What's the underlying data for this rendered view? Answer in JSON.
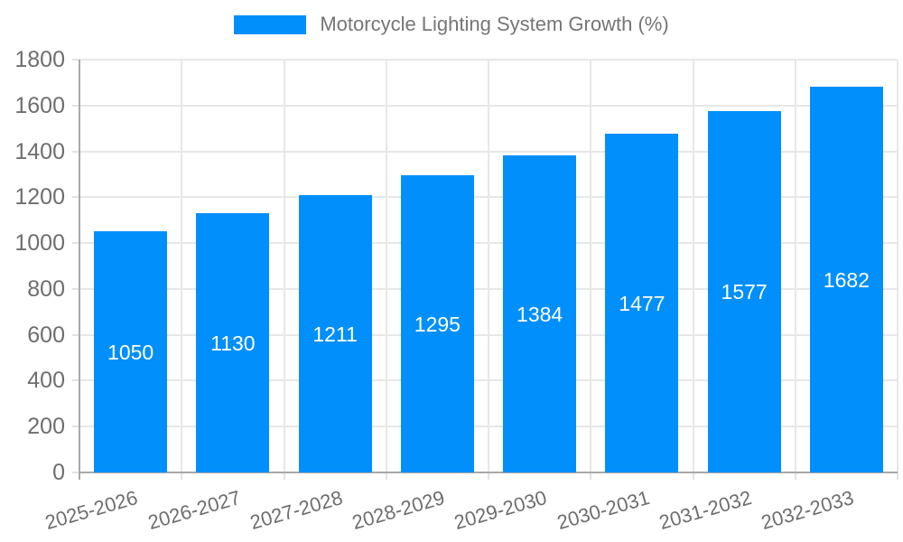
{
  "chart_data": {
    "type": "bar",
    "title": "Motorcycle Lighting System Growth (%)",
    "categories": [
      "2025-2026",
      "2026-2027",
      "2027-2028",
      "2028-2029",
      "2029-2030",
      "2030-2031",
      "2031-2032",
      "2032-2033"
    ],
    "values": [
      1050,
      1130,
      1211,
      1295,
      1384,
      1477,
      1577,
      1682
    ],
    "value_labels": [
      "1050",
      "1130",
      "1211",
      "1295",
      "1384",
      "1477",
      "1577",
      "1682"
    ],
    "xlabel": "",
    "ylabel": "",
    "ylim": [
      0,
      1800
    ],
    "ytick_step": 200,
    "ytick_labels": [
      "0",
      "200",
      "400",
      "600",
      "800",
      "1000",
      "1200",
      "1400",
      "1600",
      "1800"
    ],
    "grid": "horizontal and vertical",
    "legend_position": "top-center",
    "bar_label_position": "center-inside",
    "colors": {
      "bar": "#008FFB",
      "bar_value_text": "#ffffff",
      "axis_text": "#6e6e6e",
      "legend_text": "#757575",
      "grid_line": "#e7e7e7",
      "tick_line": "#e2e2e2",
      "axis_line": "#a8a8a8",
      "background": "#ffffff"
    }
  }
}
